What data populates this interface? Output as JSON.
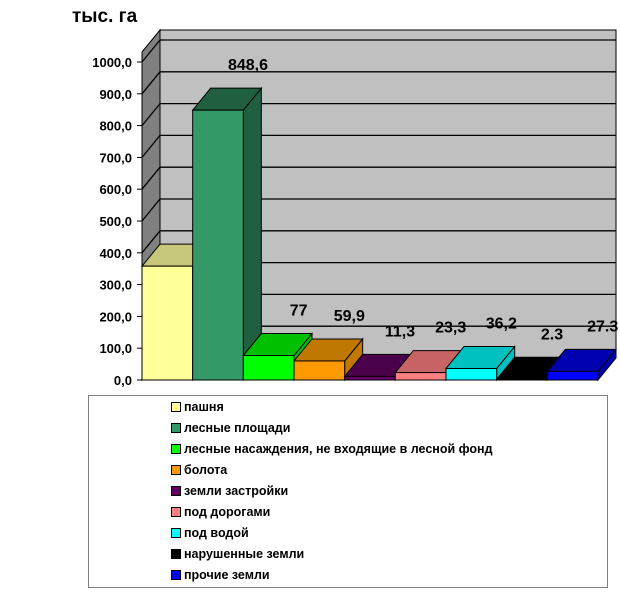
{
  "chart_data": {
    "type": "bar",
    "ylabel": "тыс. га",
    "ylim": [
      0,
      1000
    ],
    "yticks": [
      "0,0",
      "100,0",
      "200,0",
      "300,0",
      "400,0",
      "500,0",
      "600,0",
      "700,0",
      "800,0",
      "900,0",
      "1000,0"
    ],
    "categories": [
      "пашня",
      "лесные площади",
      "лесные насаждения, не входящие в лесной фонд",
      "болота",
      "земли застройки",
      "под дорогами",
      "под водой",
      "нарушенные земли",
      "прочие земли"
    ],
    "values": [
      358,
      848.6,
      77,
      59.9,
      11.3,
      23.3,
      36.2,
      2.3,
      27.3
    ],
    "data_labels": [
      "",
      "848,6",
      "77",
      "59,9",
      "11,3",
      "23,3",
      "36,2",
      "2.3",
      "27.3"
    ],
    "colors": [
      "#FFFF99",
      "#339966",
      "#00FF00",
      "#FF9900",
      "#660066",
      "#FF8080",
      "#00FFFF",
      "#000000",
      "#0000FF"
    ],
    "top_colors": [
      "#C8C87A",
      "#206040",
      "#00C000",
      "#C07800",
      "#4A004A",
      "#C86464",
      "#00C0C0",
      "#000000",
      "#0000B0"
    ],
    "legend_position": "bottom",
    "grid": true
  }
}
